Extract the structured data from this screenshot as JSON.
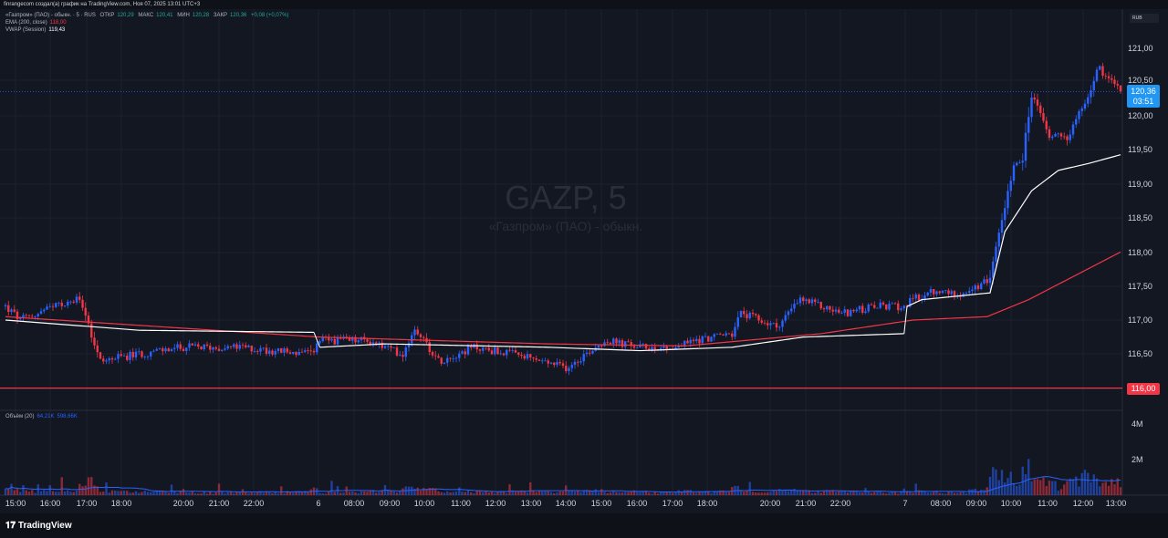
{
  "header": {
    "text": "finrangecom создал(а) график на TradingView.com, Ноя 07, 2025 13:01 UTC+3"
  },
  "legend": {
    "symbol": "«Газпром» (ПАО) - обыкн. · 5 · RUS",
    "open_label": "ОТКР",
    "open": "120,29",
    "high_label": "МАКС",
    "high": "120,41",
    "low_label": "МИН",
    "low": "120,28",
    "close_label": "ЗАКР",
    "close": "120,36",
    "change": "+0,08 (+0,07%)",
    "ema_label": "EMA (200, close)",
    "ema_value": "118,00",
    "vwap_label": "VWAP (Session)",
    "vwap_value": "119,43"
  },
  "volume_legend": {
    "label": "Объём (20)",
    "v1": "64,21K",
    "v2": "598,66K"
  },
  "watermark": {
    "title": "GAZP, 5",
    "subtitle": "«Газпром» (ПАО) - обыкн."
  },
  "currency": "RUB",
  "price_axis": [
    "121,00",
    "120,50",
    "120,00",
    "119,50",
    "119,00",
    "118,50",
    "118,00",
    "117,50",
    "117,00",
    "116,50"
  ],
  "volume_axis": [
    "4M",
    "2M"
  ],
  "current_price": {
    "value": "120,36",
    "countdown": "03:51"
  },
  "level_line": {
    "value": "116,00"
  },
  "time_axis": [
    "15:00",
    "16:00",
    "17:00",
    "18:00",
    "20:00",
    "21:00",
    "22:00",
    "6",
    "08:00",
    "09:00",
    "10:00",
    "11:00",
    "12:00",
    "13:00",
    "14:00",
    "15:00",
    "16:00",
    "17:00",
    "18:00",
    "20:00",
    "21:00",
    "22:00",
    "7",
    "08:00",
    "09:00",
    "10:00",
    "11:00",
    "12:00",
    "13:00"
  ],
  "footer": {
    "logo": "TradingView"
  },
  "colors": {
    "up": "#2962ff",
    "down": "#f23645",
    "ema": "#f23645",
    "vwap": "#ffffff",
    "bg": "#131722"
  },
  "chart_data": {
    "type": "candlestick",
    "interval": "5m",
    "close_path": [
      [
        0,
        117.2
      ],
      [
        5,
        117.0
      ],
      [
        17,
        117.2
      ],
      [
        25,
        117.3
      ],
      [
        28,
        116.9
      ],
      [
        32,
        116.4
      ],
      [
        45,
        116.5
      ],
      [
        60,
        116.6
      ],
      [
        78,
        116.6
      ],
      [
        103,
        116.5
      ],
      [
        106,
        116.7
      ],
      [
        122,
        116.7
      ],
      [
        134,
        116.5
      ],
      [
        138,
        116.9
      ],
      [
        146,
        116.4
      ],
      [
        158,
        116.6
      ],
      [
        171,
        116.5
      ],
      [
        189,
        116.3
      ],
      [
        202,
        116.7
      ],
      [
        214,
        116.6
      ],
      [
        226,
        116.6
      ],
      [
        232,
        116.7
      ],
      [
        245,
        116.8
      ],
      [
        248,
        117.1
      ],
      [
        260,
        116.9
      ],
      [
        268,
        117.3
      ],
      [
        282,
        117.1
      ],
      [
        294,
        117.2
      ],
      [
        303,
        117.2
      ],
      [
        306,
        117.3
      ],
      [
        312,
        117.4
      ],
      [
        325,
        117.4
      ],
      [
        332,
        117.6
      ],
      [
        335,
        118.3
      ],
      [
        340,
        119.3
      ],
      [
        343,
        119.4
      ],
      [
        346,
        120.3
      ],
      [
        352,
        119.7
      ],
      [
        358,
        119.7
      ],
      [
        365,
        120.3
      ],
      [
        368,
        120.7
      ],
      [
        372,
        120.6
      ],
      [
        376,
        120.36
      ]
    ],
    "ema_path": [
      [
        0,
        117.05
      ],
      [
        106,
        116.75
      ],
      [
        183,
        116.65
      ],
      [
        229,
        116.62
      ],
      [
        275,
        116.8
      ],
      [
        306,
        117.0
      ],
      [
        331,
        117.05
      ],
      [
        345,
        117.3
      ],
      [
        376,
        118.0
      ]
    ],
    "vwap_sessions": [
      [
        [
          0,
          117.0
        ],
        [
          45,
          116.85
        ],
        [
          104,
          116.82
        ]
      ],
      [
        [
          106,
          116.6
        ],
        [
          128,
          116.65
        ],
        [
          183,
          116.6
        ],
        [
          214,
          116.55
        ],
        [
          245,
          116.6
        ],
        [
          269,
          116.75
        ],
        [
          303,
          116.8
        ]
      ],
      [
        [
          304,
          117.2
        ],
        [
          309,
          117.3
        ],
        [
          332,
          117.4
        ],
        [
          337,
          118.3
        ],
        [
          346,
          118.9
        ],
        [
          355,
          119.2
        ],
        [
          365,
          119.3
        ],
        [
          376,
          119.43
        ]
      ]
    ],
    "y_range": [
      115.65,
      121.5
    ],
    "volume_range_millions": [
      0,
      4.5
    ],
    "level": 116.0,
    "last": 120.36
  }
}
